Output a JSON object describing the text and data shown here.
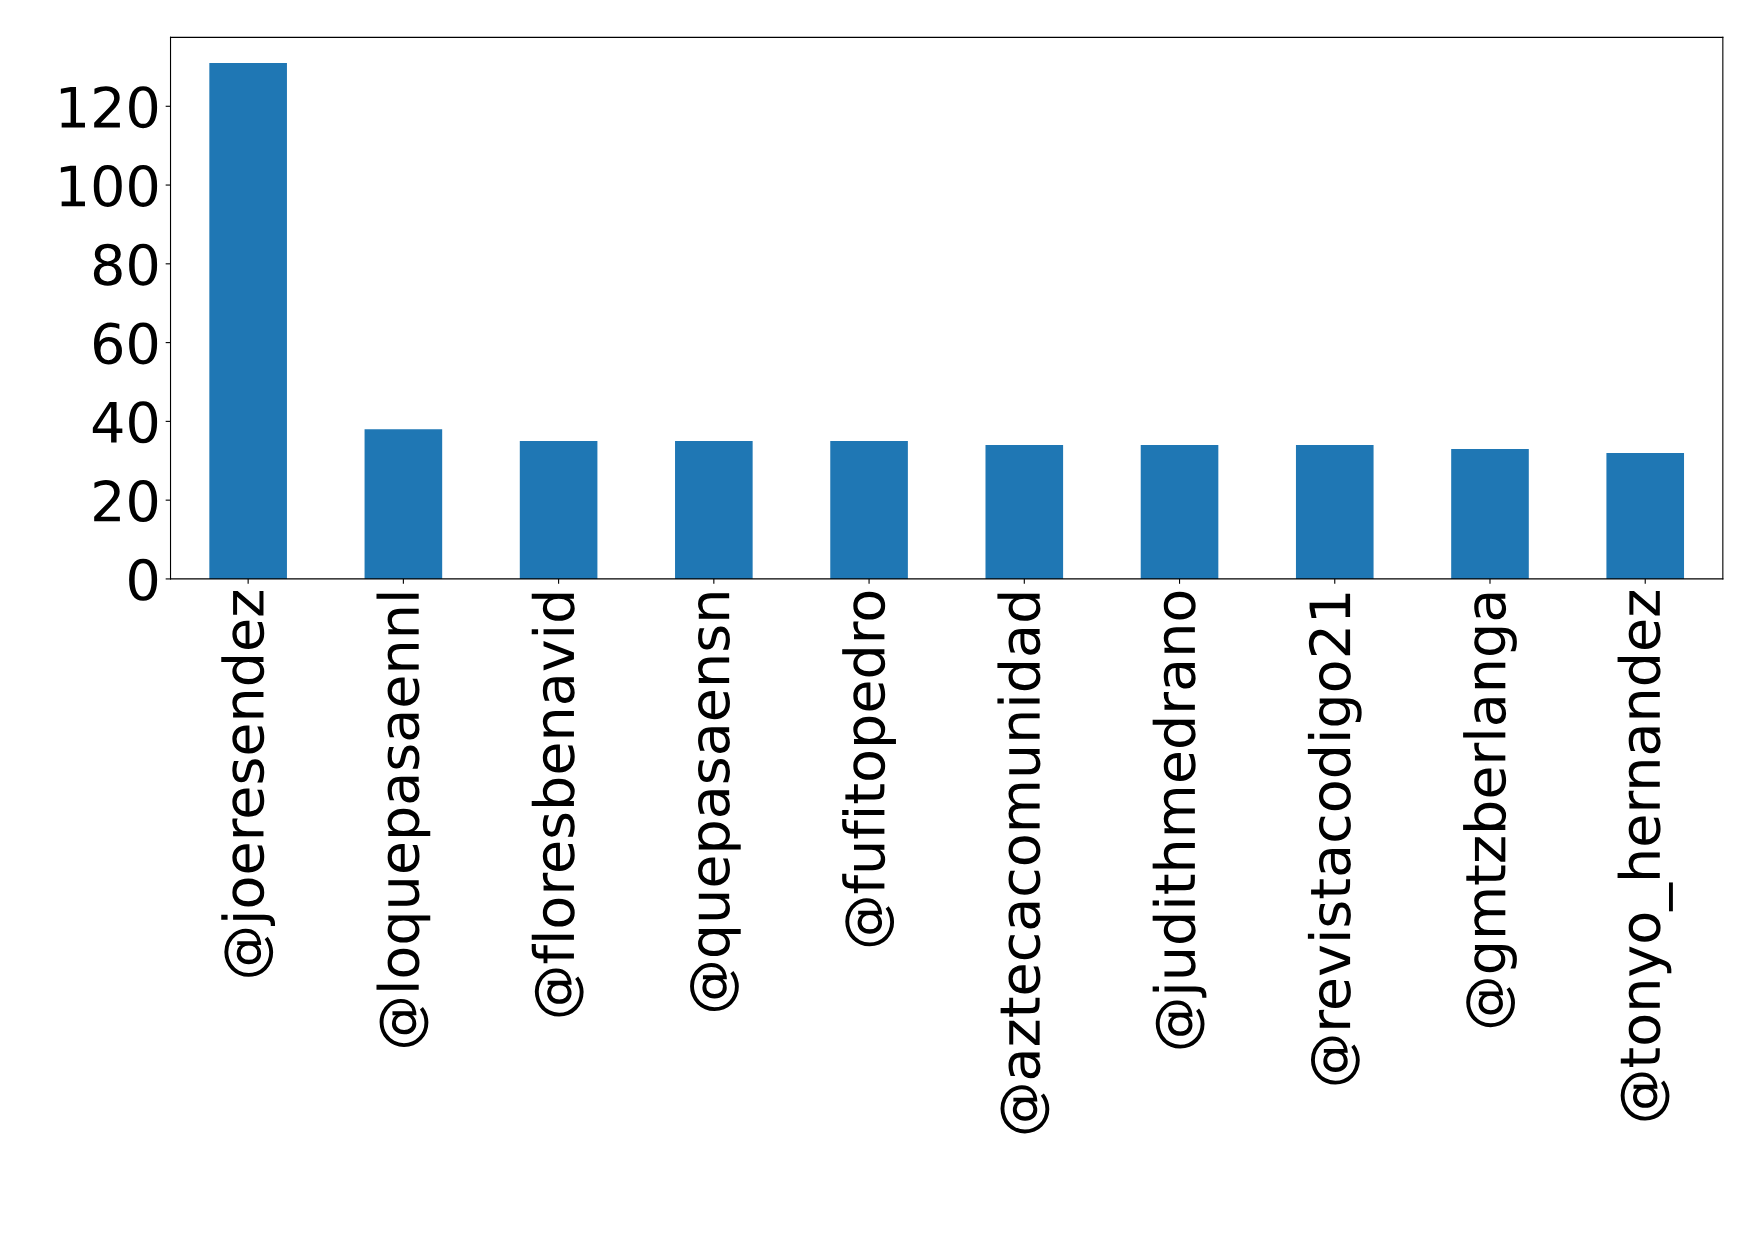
{
  "chart_data": {
    "type": "bar",
    "categories": [
      "@joeresendez",
      "@loquepasaennl",
      "@floresbenavid",
      "@quepasaensn",
      "@fufitopedro",
      "@aztecacomunidad",
      "@judithmedrano",
      "@revistacodigo21",
      "@gmtzberlanga",
      "@tonyo_hernandez"
    ],
    "values": [
      131,
      38,
      35,
      35,
      35,
      34,
      34,
      34,
      33,
      32
    ],
    "color": "#1f77b4",
    "ylim": [
      0,
      137.5
    ],
    "yticks": [
      0,
      20,
      40,
      60,
      80,
      100,
      120
    ],
    "grid": false,
    "legend": false
  }
}
